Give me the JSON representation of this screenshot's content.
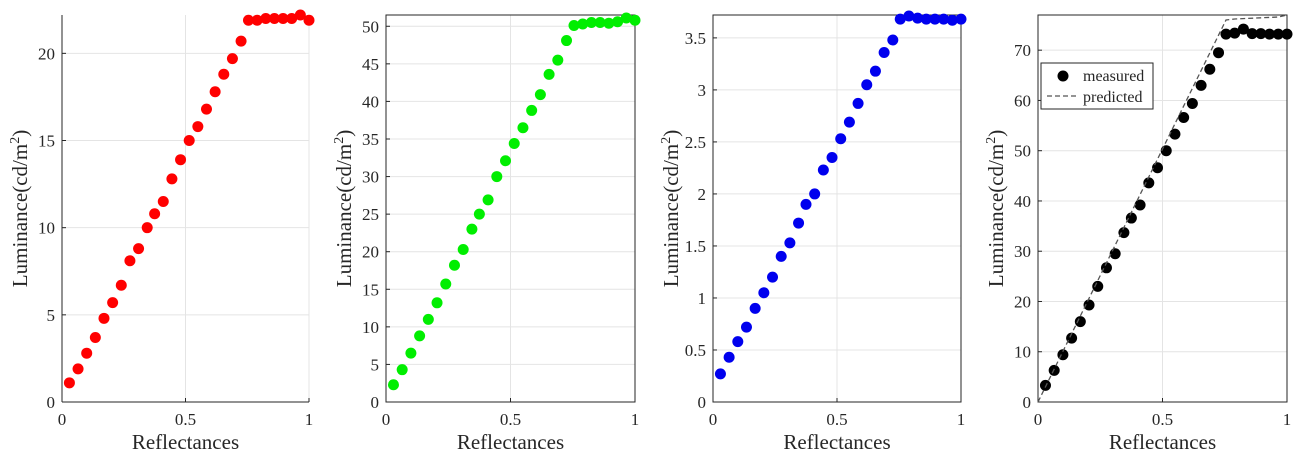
{
  "chart_data": [
    {
      "type": "scatter",
      "xlabel": "Reflectances",
      "ylabel": "Luminance(cd/m",
      "ylabel_sup": "2",
      "ylabel_close": ")",
      "xlim": [
        0,
        1
      ],
      "ylim": [
        0,
        22.2
      ],
      "xticks": [
        0,
        0.5,
        1
      ],
      "xticklabels": [
        "0",
        "0.5",
        "1"
      ],
      "yticks": [
        0,
        5,
        10,
        15,
        20
      ],
      "yticklabels": [
        "0",
        "5",
        "10",
        "15",
        "20"
      ],
      "grid": true,
      "color": "#ff0000",
      "series": [
        {
          "x": [
            0.03,
            0.065,
            0.1,
            0.135,
            0.17,
            0.205,
            0.24,
            0.275,
            0.31,
            0.345,
            0.375,
            0.41,
            0.445,
            0.48,
            0.515,
            0.55,
            0.585,
            0.62,
            0.655,
            0.69,
            0.725,
            0.755,
            0.79,
            0.825,
            0.86,
            0.895,
            0.93,
            0.965,
            1.0
          ],
          "y": [
            1.1,
            1.9,
            2.8,
            3.7,
            4.8,
            5.7,
            6.7,
            8.1,
            8.8,
            10.0,
            10.8,
            11.5,
            12.8,
            13.9,
            15.0,
            15.8,
            16.8,
            17.8,
            18.8,
            19.7,
            20.7,
            21.9,
            21.9,
            22.0,
            22.0,
            22.0,
            22.0,
            22.2,
            21.9
          ]
        }
      ]
    },
    {
      "type": "scatter",
      "xlabel": "Reflectances",
      "ylabel": "Luminance(cd/m",
      "ylabel_sup": "2",
      "ylabel_close": ")",
      "xlim": [
        0,
        1
      ],
      "ylim": [
        0,
        51.5
      ],
      "xticks": [
        0,
        0.5,
        1
      ],
      "xticklabels": [
        "0",
        "0.5",
        "1"
      ],
      "yticks": [
        0,
        5,
        10,
        15,
        20,
        25,
        30,
        35,
        40,
        45,
        50
      ],
      "yticklabels": [
        "0",
        "5",
        "10",
        "15",
        "20",
        "25",
        "30",
        "35",
        "40",
        "45",
        "50"
      ],
      "grid": true,
      "color": "#00ee00",
      "series": [
        {
          "x": [
            0.03,
            0.065,
            0.1,
            0.135,
            0.17,
            0.205,
            0.24,
            0.275,
            0.31,
            0.345,
            0.375,
            0.41,
            0.445,
            0.48,
            0.515,
            0.55,
            0.585,
            0.62,
            0.655,
            0.69,
            0.725,
            0.755,
            0.79,
            0.825,
            0.86,
            0.895,
            0.93,
            0.965,
            1.0
          ],
          "y": [
            2.3,
            4.3,
            6.5,
            8.8,
            11.0,
            13.2,
            15.7,
            18.2,
            20.3,
            23.0,
            25.0,
            26.9,
            30.0,
            32.1,
            34.4,
            36.5,
            38.8,
            40.9,
            43.6,
            45.5,
            48.1,
            50.1,
            50.3,
            50.5,
            50.5,
            50.4,
            50.6,
            51.1,
            50.8
          ]
        }
      ]
    },
    {
      "type": "scatter",
      "xlabel": "Reflectances",
      "ylabel": "Luminance(cd/m",
      "ylabel_sup": "2",
      "ylabel_close": ")",
      "xlim": [
        0,
        1
      ],
      "ylim": [
        0,
        3.72
      ],
      "xticks": [
        0,
        0.5,
        1
      ],
      "xticklabels": [
        "0",
        "0.5",
        "1"
      ],
      "yticks": [
        0,
        0.5,
        1,
        1.5,
        2,
        2.5,
        3,
        3.5
      ],
      "yticklabels": [
        "0",
        "0.5",
        "1",
        "1.5",
        "2",
        "2.5",
        "3",
        "3.5"
      ],
      "grid": true,
      "color": "#0000ee",
      "series": [
        {
          "x": [
            0.03,
            0.065,
            0.1,
            0.135,
            0.17,
            0.205,
            0.24,
            0.275,
            0.31,
            0.345,
            0.375,
            0.41,
            0.445,
            0.48,
            0.515,
            0.55,
            0.585,
            0.62,
            0.655,
            0.69,
            0.725,
            0.755,
            0.79,
            0.825,
            0.86,
            0.895,
            0.93,
            0.965,
            1.0
          ],
          "y": [
            0.27,
            0.43,
            0.58,
            0.72,
            0.9,
            1.05,
            1.2,
            1.4,
            1.53,
            1.72,
            1.9,
            2.0,
            2.23,
            2.35,
            2.53,
            2.69,
            2.87,
            3.05,
            3.18,
            3.36,
            3.48,
            3.68,
            3.71,
            3.69,
            3.68,
            3.68,
            3.68,
            3.67,
            3.68
          ]
        }
      ]
    },
    {
      "type": "scatter",
      "xlabel": "Reflectances",
      "ylabel": "Luminance(cd/m",
      "ylabel_sup": "2",
      "ylabel_close": ")",
      "xlim": [
        0,
        1
      ],
      "ylim": [
        0,
        77
      ],
      "xticks": [
        0,
        0.5,
        1
      ],
      "xticklabels": [
        "0",
        "0.5",
        "1"
      ],
      "yticks": [
        0,
        10,
        20,
        30,
        40,
        50,
        60,
        70
      ],
      "yticklabels": [
        "0",
        "10",
        "20",
        "30",
        "40",
        "50",
        "60",
        "70"
      ],
      "grid": true,
      "color": "#000000",
      "legend": {
        "position": "top-left",
        "entries": [
          "measured",
          "predicted"
        ]
      },
      "series": [
        {
          "name": "measured",
          "style": "markers",
          "x": [
            0.03,
            0.065,
            0.1,
            0.135,
            0.17,
            0.205,
            0.24,
            0.275,
            0.31,
            0.345,
            0.375,
            0.41,
            0.445,
            0.48,
            0.515,
            0.55,
            0.585,
            0.62,
            0.655,
            0.69,
            0.725,
            0.755,
            0.79,
            0.825,
            0.86,
            0.895,
            0.93,
            0.965,
            1.0
          ],
          "y": [
            3.3,
            6.3,
            9.4,
            12.7,
            16.0,
            19.3,
            23.0,
            26.7,
            29.5,
            33.7,
            36.6,
            39.2,
            43.6,
            46.6,
            50.0,
            53.3,
            56.6,
            59.4,
            63.0,
            66.2,
            69.5,
            73.2,
            73.4,
            74.2,
            73.3,
            73.3,
            73.2,
            73.2,
            73.2
          ]
        },
        {
          "name": "predicted",
          "style": "dashed",
          "x": [
            0.0,
            0.755,
            0.79,
            0.965,
            1.0
          ],
          "y": [
            0.0,
            76.0,
            76.2,
            76.6,
            77.0
          ]
        }
      ]
    }
  ]
}
